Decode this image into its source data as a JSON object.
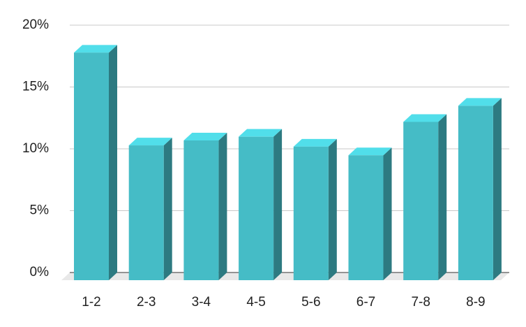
{
  "chart_data": {
    "type": "bar3d",
    "categories": [
      "1-2",
      "2-3",
      "3-4",
      "4-5",
      "5-6",
      "6-7",
      "7-8",
      "8-9"
    ],
    "values": [
      18.4,
      10.9,
      11.3,
      11.6,
      10.8,
      10.1,
      12.8,
      14.1
    ],
    "color": "#45bcc6",
    "ylim": [
      0,
      20
    ],
    "yticks": [
      {
        "value": 0,
        "label": "0%"
      },
      {
        "value": 5,
        "label": "5%"
      },
      {
        "value": 10,
        "label": "10%"
      },
      {
        "value": 15,
        "label": "15%"
      },
      {
        "value": 20,
        "label": "20%"
      }
    ],
    "grid": true
  }
}
